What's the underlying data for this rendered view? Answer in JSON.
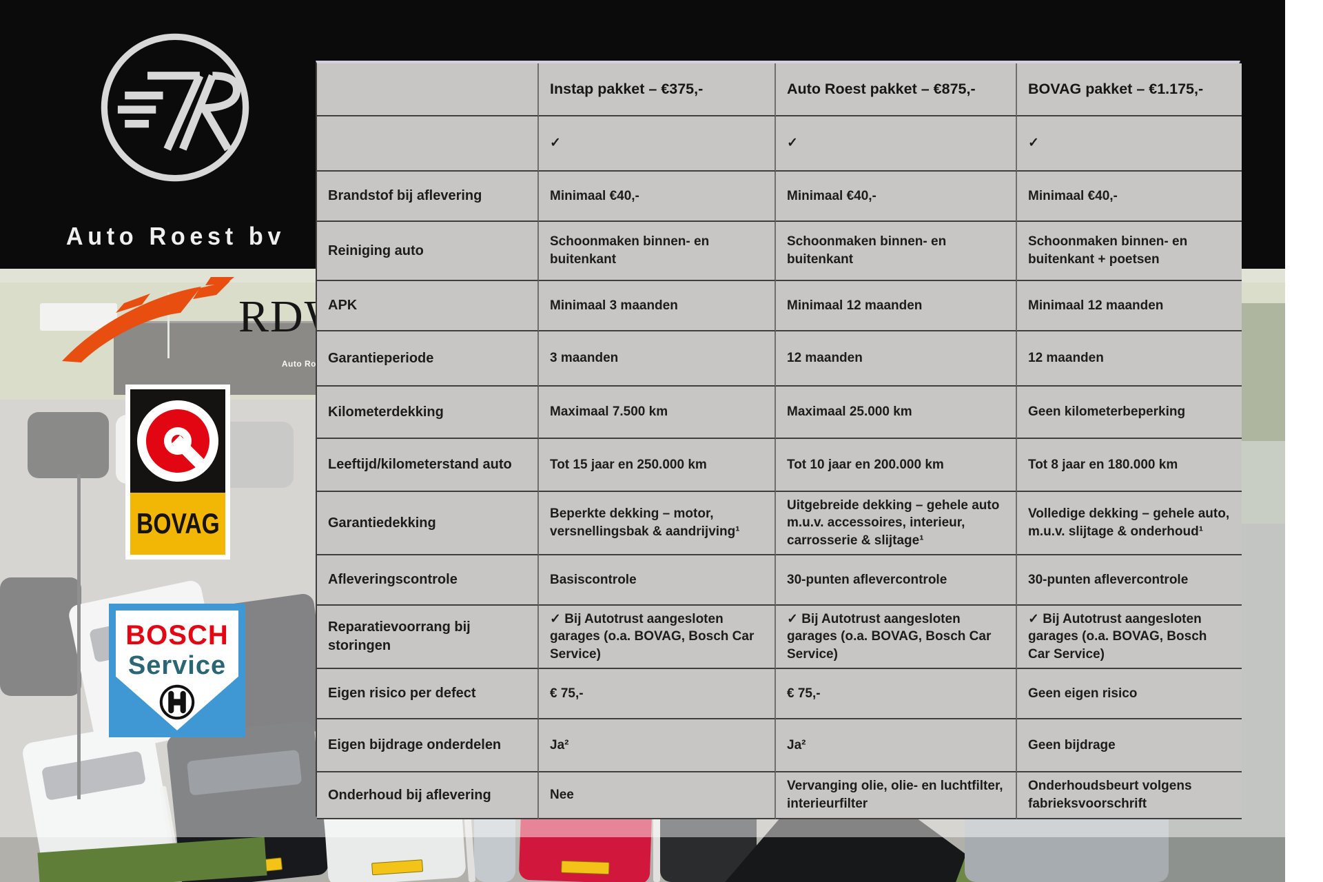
{
  "branding": {
    "auto_roest": {
      "monogram": "7R",
      "name": "Auto Roest bv"
    },
    "rdw": {
      "label": "RDW"
    },
    "bovag": {
      "label": "BOVAG"
    },
    "bosch": {
      "line1": "BOSCH",
      "line2": "Service"
    }
  },
  "photo": {
    "building_sign": "Auto Ro"
  },
  "colors": {
    "table_bg": "#c7c6c4",
    "table_border": "#3e3e3e",
    "band_black": "#0b0b0b",
    "rdw_orange": "#e84e0f",
    "bovag_yellow": "#f2b705",
    "bovag_red": "#e20613",
    "bosch_blue": "#3f97d3",
    "bosch_red": "#e30613",
    "bosch_teal": "#2a6673"
  },
  "table": {
    "columns": [
      "",
      "Instap pakket – €375,-",
      "Auto Roest pakket – €875,-",
      "BOVAG pakket – €1.175,-"
    ],
    "rows": [
      {
        "label": "",
        "values": [
          "✓",
          "✓",
          "✓"
        ]
      },
      {
        "label": "Brandstof bij aflevering",
        "values": [
          "Minimaal €40,-",
          "Minimaal €40,-",
          "Minimaal €40,-"
        ]
      },
      {
        "label": "Reiniging auto",
        "values": [
          "Schoonmaken binnen- en buitenkant",
          "Schoonmaken binnen- en buitenkant",
          "Schoonmaken binnen- en buitenkant + poetsen"
        ]
      },
      {
        "label": "APK",
        "values": [
          "Minimaal 3 maanden",
          "Minimaal 12 maanden",
          "Minimaal 12 maanden"
        ]
      },
      {
        "label": "Garantieperiode",
        "values": [
          "3 maanden",
          "12 maanden",
          "12 maanden"
        ]
      },
      {
        "label": "Kilometerdekking",
        "values": [
          "Maximaal 7.500 km",
          "Maximaal 25.000 km",
          "Geen kilometerbeperking"
        ]
      },
      {
        "label": "Leeftijd/kilometerstand auto",
        "values": [
          "Tot 15 jaar en 250.000 km",
          "Tot 10 jaar en 200.000 km",
          "Tot 8 jaar en 180.000 km"
        ]
      },
      {
        "label": "Garantiedekking",
        "values": [
          "Beperkte dekking – motor, versnellingsbak & aandrijving¹",
          "Uitgebreide dekking – gehele auto m.u.v. accessoires, interieur, carrosserie & slijtage¹",
          "Volledige dekking – gehele auto, m.u.v. slijtage & onderhoud¹"
        ]
      },
      {
        "label": "Afleveringscontrole",
        "values": [
          "Basiscontrole",
          "30-punten aflevercontrole",
          "30-punten aflevercontrole"
        ]
      },
      {
        "label": "Reparatievoorrang bij storingen",
        "values": [
          "✓ Bij Autotrust aangesloten garages (o.a. BOVAG, Bosch Car Service)",
          "✓ Bij Autotrust aangesloten garages (o.a. BOVAG, Bosch Car Service)",
          "✓ Bij Autotrust aangesloten garages (o.a. BOVAG, Bosch Car Service)"
        ]
      },
      {
        "label": "Eigen risico per defect",
        "values": [
          "€ 75,-",
          "€ 75,-",
          "Geen eigen risico"
        ]
      },
      {
        "label": "Eigen bijdrage onderdelen",
        "values": [
          "Ja²",
          "Ja²",
          "Geen bijdrage"
        ]
      },
      {
        "label": "Onderhoud bij aflevering",
        "values": [
          "Nee",
          "Vervanging olie, olie- en luchtfilter, interieurfilter",
          "Onderhoudsbeurt volgens fabrieksvoorschrift"
        ]
      }
    ]
  }
}
